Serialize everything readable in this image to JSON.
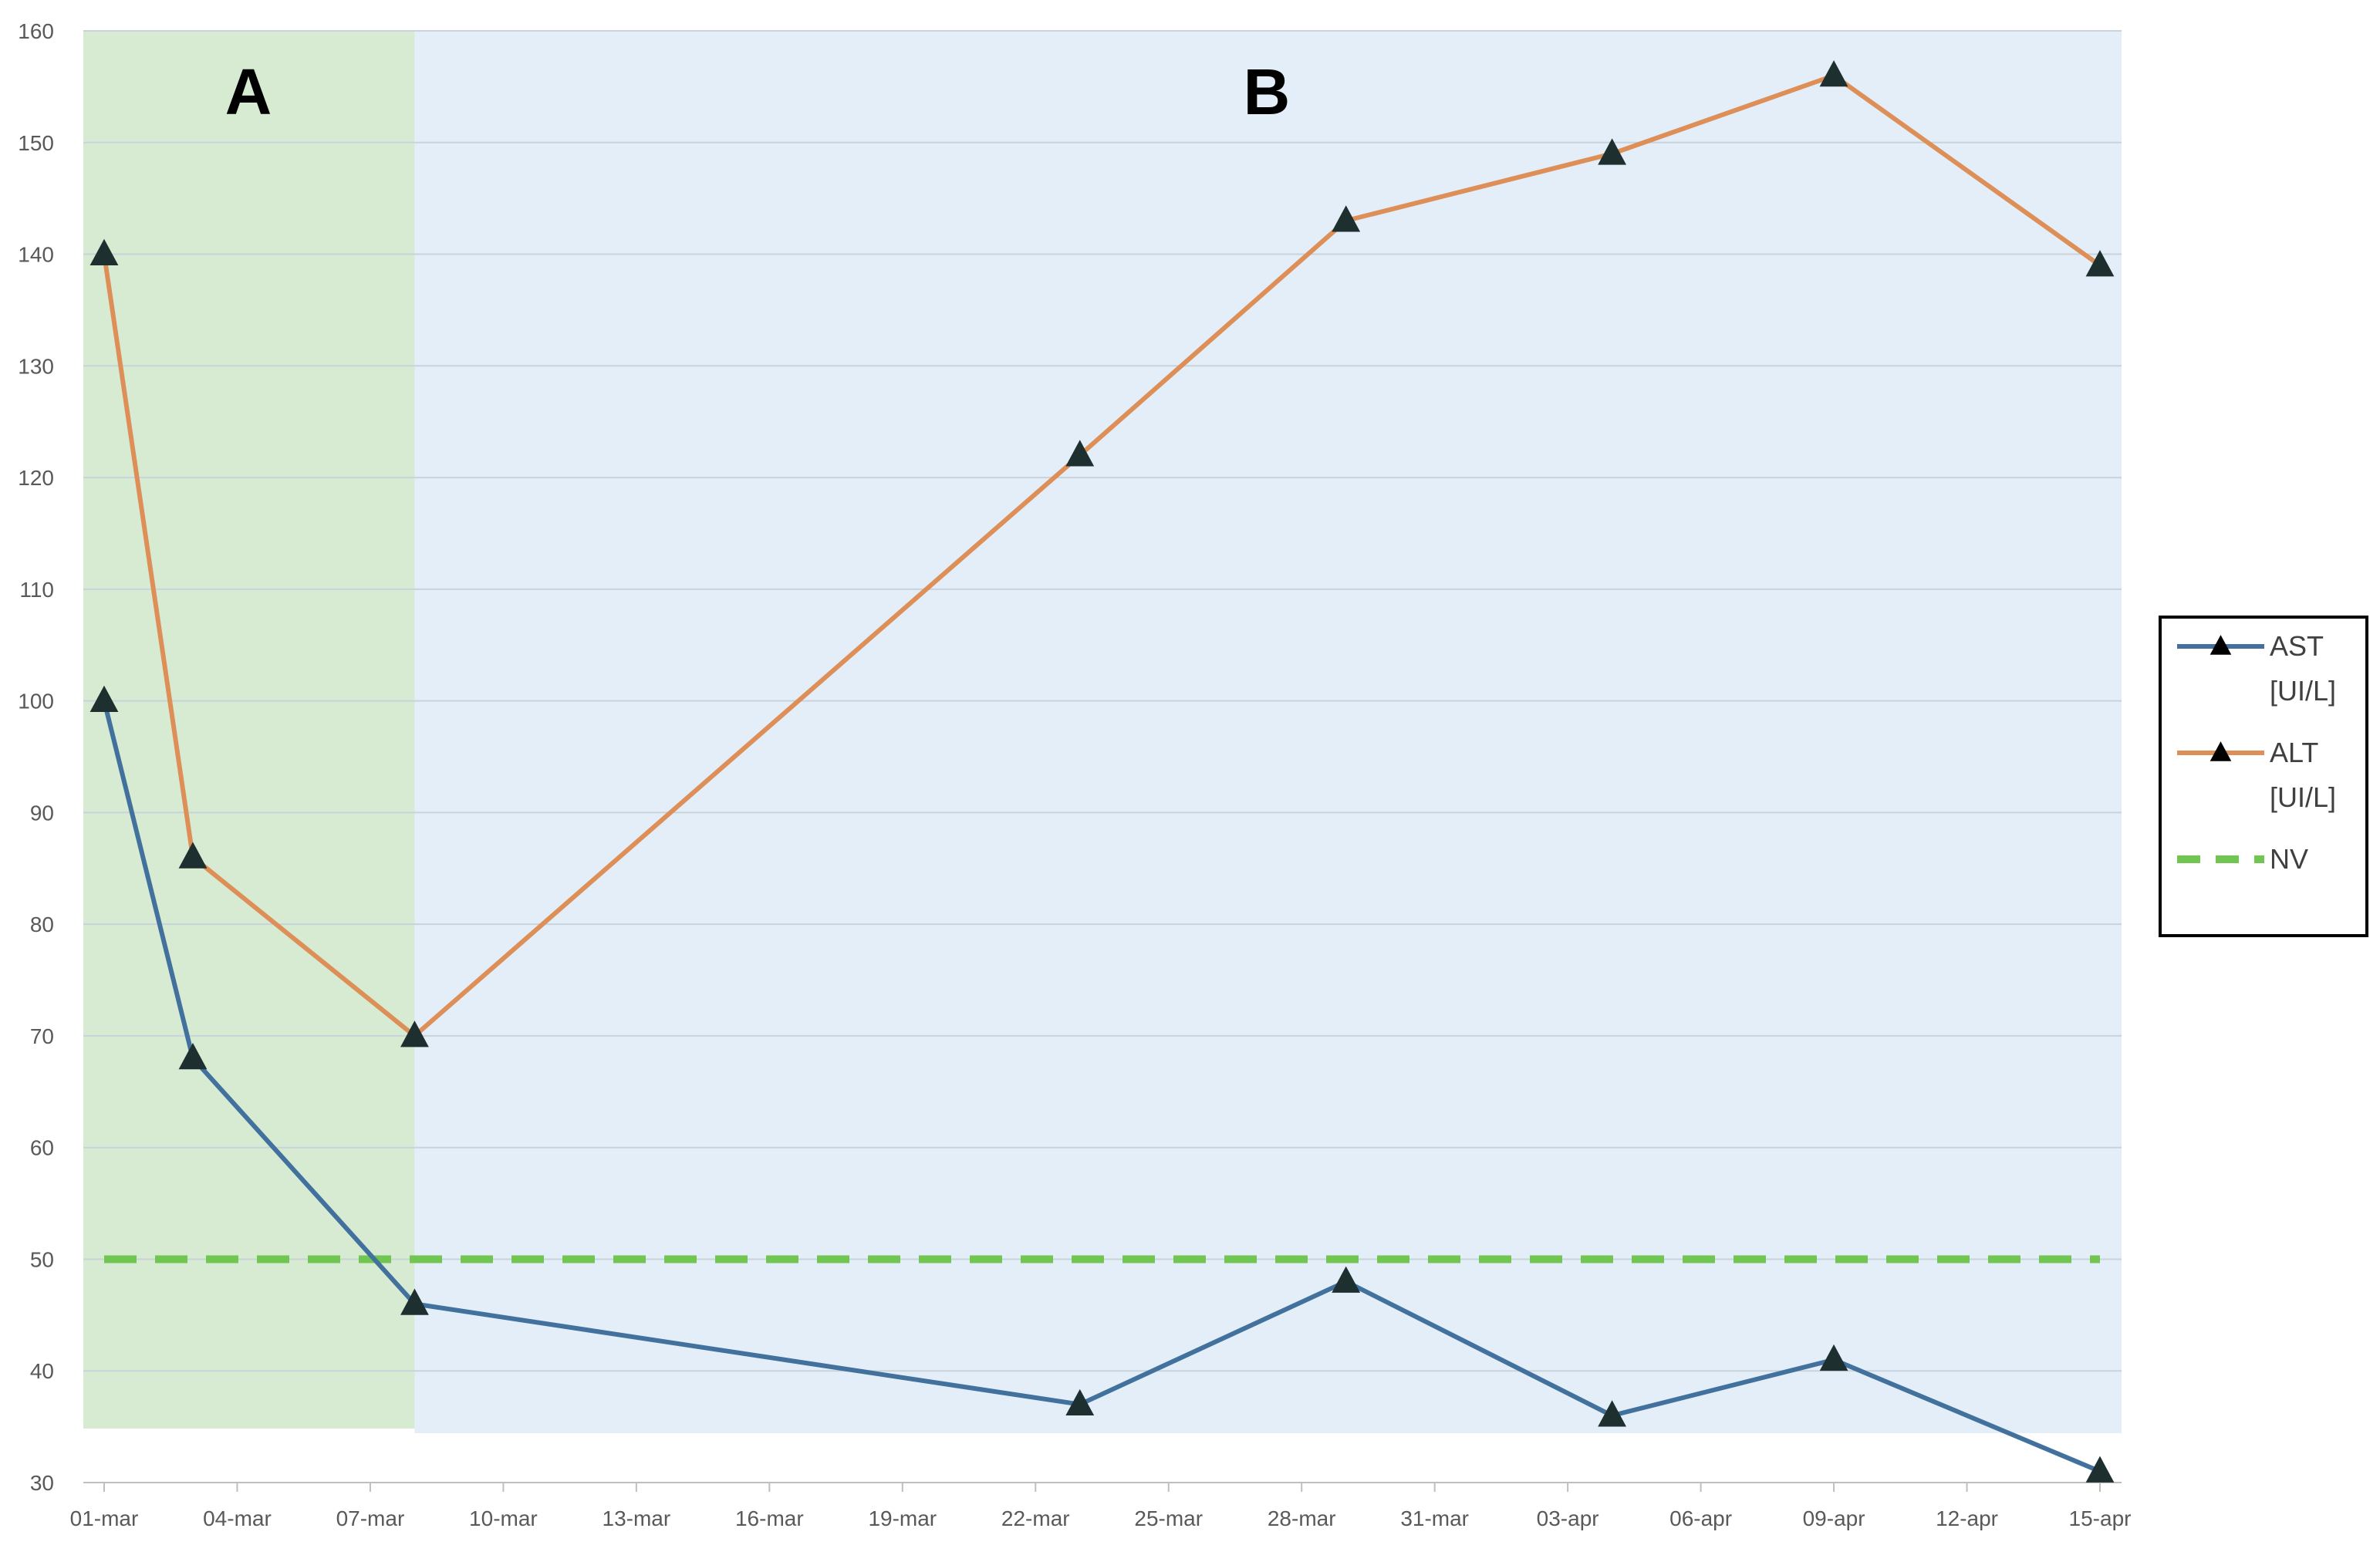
{
  "chart_data": {
    "type": "line",
    "title": "",
    "xlabel": "",
    "ylabel": "",
    "ylim": [
      30,
      160
    ],
    "y_ticks": [
      30,
      40,
      50,
      60,
      70,
      80,
      90,
      100,
      110,
      120,
      130,
      140,
      150,
      160
    ],
    "x_range": [
      "01-mar",
      "15-apr"
    ],
    "x_tick_labels": [
      "01-mar",
      "04-mar",
      "07-mar",
      "10-mar",
      "13-mar",
      "16-mar",
      "19-mar",
      "22-mar",
      "25-mar",
      "28-mar",
      "31-mar",
      "03-apr",
      "06-apr",
      "09-apr",
      "12-apr",
      "15-apr"
    ],
    "grid": "horizontal",
    "legend_position": "right",
    "regions": [
      {
        "label": "A",
        "x_start": "01-mar",
        "x_end": "08-mar",
        "color": "#d6ebd2"
      },
      {
        "label": "B",
        "x_start": "08-mar",
        "x_end": "15-apr",
        "color": "#e3eef8"
      }
    ],
    "series": [
      {
        "name": "AST [UI/L]",
        "color": "#41719c",
        "marker": "triangle",
        "points": [
          {
            "x": "01-mar",
            "y": 100
          },
          {
            "x": "03-mar",
            "y": 68
          },
          {
            "x": "08-mar",
            "y": 46
          },
          {
            "x": "23-mar",
            "y": 37
          },
          {
            "x": "29-mar",
            "y": 48
          },
          {
            "x": "04-apr",
            "y": 36
          },
          {
            "x": "09-apr",
            "y": 41
          },
          {
            "x": "15-apr",
            "y": 31
          }
        ]
      },
      {
        "name": "ALT [UI/L]",
        "color": "#dd8f57",
        "marker": "triangle",
        "points": [
          {
            "x": "01-mar",
            "y": 140
          },
          {
            "x": "03-mar",
            "y": 86
          },
          {
            "x": "08-mar",
            "y": 70
          },
          {
            "x": "23-mar",
            "y": 122
          },
          {
            "x": "29-mar",
            "y": 143
          },
          {
            "x": "04-apr",
            "y": 149
          },
          {
            "x": "09-apr",
            "y": 156
          },
          {
            "x": "15-apr",
            "y": 139
          }
        ]
      },
      {
        "name": "NV",
        "color": "#70c650",
        "style": "dashed",
        "constant_y": 50,
        "x_start": "01-mar",
        "x_end": "15-apr"
      }
    ]
  }
}
